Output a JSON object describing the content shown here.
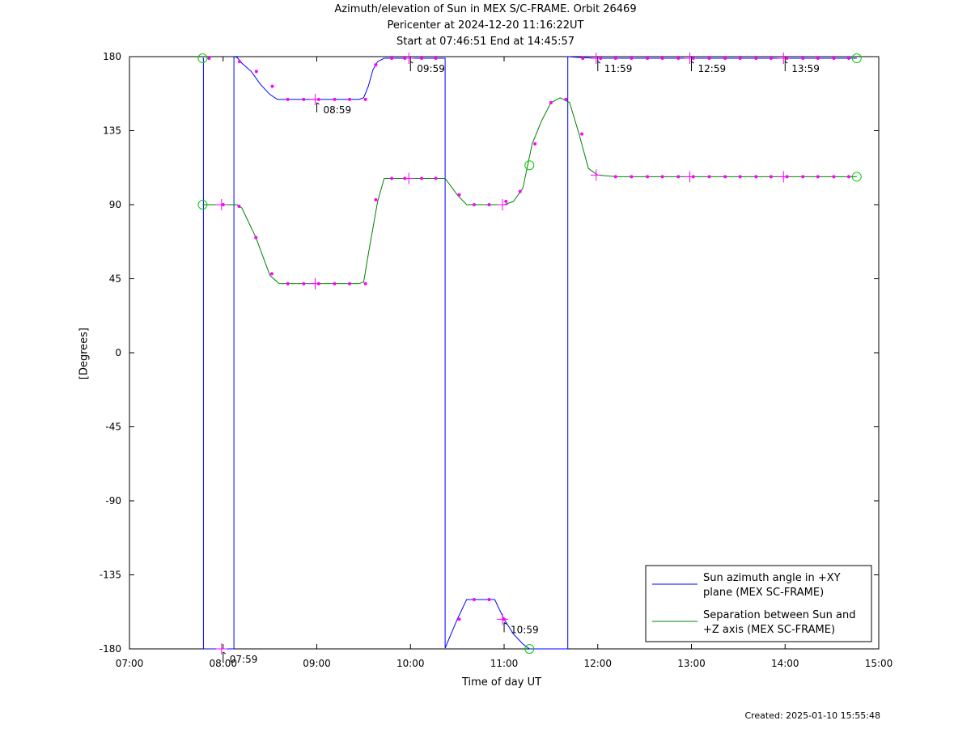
{
  "titles": {
    "line1": "Azimuth/elevation of Sun in MEX S/C-FRAME.  Orbit 26469",
    "line2": "Pericenter at 2024-12-20 11:16:22UT",
    "line3": "Start at 07:46:51 End at 14:45:57"
  },
  "created": "Created: 2025-01-10 15:55:48",
  "chart_data": {
    "type": "line",
    "xlabel": "Time of day UT",
    "ylabel": "[Degrees]",
    "xlim": [
      7.0,
      15.0
    ],
    "ylim": [
      -180,
      180
    ],
    "x_ticks": [
      {
        "v": 7,
        "label": "07:00"
      },
      {
        "v": 8,
        "label": "08:00"
      },
      {
        "v": 9,
        "label": "09:00"
      },
      {
        "v": 10,
        "label": "10:00"
      },
      {
        "v": 11,
        "label": "11:00"
      },
      {
        "v": 12,
        "label": "12:00"
      },
      {
        "v": 13,
        "label": "13:00"
      },
      {
        "v": 14,
        "label": "14:00"
      },
      {
        "v": 15,
        "label": "15:00"
      }
    ],
    "y_ticks": [
      {
        "v": 180,
        "label": "180"
      },
      {
        "v": 135,
        "label": "135"
      },
      {
        "v": 90,
        "label": "90"
      },
      {
        "v": 45,
        "label": "45"
      },
      {
        "v": 0,
        "label": "0"
      },
      {
        "v": -45,
        "label": "-45"
      },
      {
        "v": -90,
        "label": "-90"
      },
      {
        "v": -135,
        "label": "-135"
      },
      {
        "v": -180,
        "label": "-180"
      }
    ],
    "legend_position": "bottom-right",
    "series": [
      {
        "name": "Sun azimuth angle in +XY plane (MEX SC-FRAME)",
        "legend_lines": [
          "Sun azimuth angle in +XY",
          "plane (MEX SC-FRAME)"
        ],
        "color": "#0000ff",
        "x": [
          7.781,
          7.79,
          7.79,
          8.115,
          8.115,
          8.15,
          8.2,
          8.3,
          8.4,
          8.5,
          8.58,
          8.63,
          8.8,
          9.0,
          9.2,
          9.45,
          9.5,
          9.55,
          9.6,
          9.65,
          9.72,
          9.8,
          10.0,
          10.2,
          10.37,
          10.37,
          10.5,
          10.6,
          10.7,
          10.9,
          11.0,
          11.1,
          11.2,
          11.27,
          11.4,
          11.55,
          11.68,
          11.68,
          11.8,
          12.0,
          12.5,
          13.0,
          13.5,
          14.0,
          14.5,
          14.765
        ],
        "y": [
          179,
          179,
          -180,
          -180,
          180,
          179.5,
          176,
          171,
          163,
          157,
          154,
          154,
          154,
          154,
          154,
          154,
          155,
          162,
          172,
          177,
          179,
          179,
          179,
          179,
          179,
          -179.5,
          -162,
          -150,
          -150,
          -150,
          -162,
          -171,
          -177,
          -180,
          -180,
          -180,
          -180,
          180,
          179.5,
          179,
          179,
          179,
          179,
          179,
          179,
          179
        ]
      },
      {
        "name": "Separation between Sun and +Z axis (MEX SC-FRAME)",
        "legend_lines": [
          "Separation between Sun and",
          "+Z axis (MEX SC-FRAME)"
        ],
        "color": "#008000",
        "x": [
          7.781,
          8.15,
          8.2,
          8.35,
          8.5,
          8.6,
          8.8,
          9.0,
          9.2,
          9.45,
          9.5,
          9.55,
          9.65,
          9.72,
          9.8,
          10.0,
          10.2,
          10.37,
          10.5,
          10.6,
          10.8,
          11.0,
          11.1,
          11.2,
          11.3,
          11.4,
          11.5,
          11.6,
          11.7,
          11.8,
          11.9,
          12.0,
          12.2,
          12.5,
          13.0,
          13.5,
          14.0,
          14.5,
          14.765
        ],
        "y": [
          90,
          90,
          88,
          70,
          47,
          42,
          42,
          42,
          42,
          42,
          43,
          60,
          92,
          106,
          106,
          106,
          106,
          106,
          96,
          90,
          90,
          90,
          92,
          100,
          127,
          141,
          152,
          155,
          152,
          133,
          112,
          108,
          107,
          107,
          107,
          107,
          107,
          107,
          107
        ]
      }
    ],
    "markers": [
      {
        "x": 7.85,
        "y": 179
      },
      {
        "x": 8.175,
        "y": 177
      },
      {
        "x": 8.355,
        "y": 171
      },
      {
        "x": 8.525,
        "y": 162
      },
      {
        "x": 8.69,
        "y": 154
      },
      {
        "x": 8.86,
        "y": 154
      },
      {
        "x": 9.02,
        "y": 154
      },
      {
        "x": 9.19,
        "y": 154
      },
      {
        "x": 9.35,
        "y": 154
      },
      {
        "x": 9.52,
        "y": 154
      },
      {
        "x": 9.63,
        "y": 175
      },
      {
        "x": 9.8,
        "y": 179
      },
      {
        "x": 9.94,
        "y": 179
      },
      {
        "x": 10.12,
        "y": 179
      },
      {
        "x": 10.27,
        "y": 179
      },
      {
        "x": 10.52,
        "y": -162
      },
      {
        "x": 10.68,
        "y": -150
      },
      {
        "x": 10.84,
        "y": -150
      },
      {
        "x": 11.0,
        "y": -162
      },
      {
        "x": 11.84,
        "y": 179
      },
      {
        "x": 12.03,
        "y": 179
      },
      {
        "x": 12.19,
        "y": 179
      },
      {
        "x": 12.36,
        "y": 179
      },
      {
        "x": 12.53,
        "y": 179
      },
      {
        "x": 12.69,
        "y": 179
      },
      {
        "x": 12.86,
        "y": 179
      },
      {
        "x": 13.02,
        "y": 179
      },
      {
        "x": 13.19,
        "y": 179
      },
      {
        "x": 13.36,
        "y": 179
      },
      {
        "x": 13.52,
        "y": 179
      },
      {
        "x": 13.69,
        "y": 179
      },
      {
        "x": 13.85,
        "y": 179
      },
      {
        "x": 14.02,
        "y": 179
      },
      {
        "x": 14.19,
        "y": 179
      },
      {
        "x": 14.35,
        "y": 179
      },
      {
        "x": 14.52,
        "y": 179
      },
      {
        "x": 14.68,
        "y": 179
      },
      {
        "x": 8.0,
        "y": 90
      },
      {
        "x": 8.17,
        "y": 89
      },
      {
        "x": 8.35,
        "y": 70
      },
      {
        "x": 8.52,
        "y": 48
      },
      {
        "x": 8.69,
        "y": 42
      },
      {
        "x": 8.86,
        "y": 42
      },
      {
        "x": 9.02,
        "y": 42
      },
      {
        "x": 9.19,
        "y": 42
      },
      {
        "x": 9.35,
        "y": 42
      },
      {
        "x": 9.52,
        "y": 42
      },
      {
        "x": 9.63,
        "y": 93
      },
      {
        "x": 9.8,
        "y": 106
      },
      {
        "x": 9.94,
        "y": 106
      },
      {
        "x": 10.12,
        "y": 106
      },
      {
        "x": 10.27,
        "y": 106
      },
      {
        "x": 10.52,
        "y": 96
      },
      {
        "x": 10.68,
        "y": 90
      },
      {
        "x": 10.84,
        "y": 90
      },
      {
        "x": 11.02,
        "y": 92
      },
      {
        "x": 11.17,
        "y": 98
      },
      {
        "x": 11.33,
        "y": 127
      },
      {
        "x": 11.5,
        "y": 152
      },
      {
        "x": 11.66,
        "y": 154
      },
      {
        "x": 11.83,
        "y": 133
      },
      {
        "x": 12.19,
        "y": 107
      },
      {
        "x": 12.36,
        "y": 107
      },
      {
        "x": 12.53,
        "y": 107
      },
      {
        "x": 12.69,
        "y": 107
      },
      {
        "x": 12.86,
        "y": 107
      },
      {
        "x": 13.02,
        "y": 107
      },
      {
        "x": 13.19,
        "y": 107
      },
      {
        "x": 13.36,
        "y": 107
      },
      {
        "x": 13.52,
        "y": 107
      },
      {
        "x": 13.69,
        "y": 107
      },
      {
        "x": 13.85,
        "y": 107
      },
      {
        "x": 14.02,
        "y": 107
      },
      {
        "x": 14.19,
        "y": 107
      },
      {
        "x": 14.35,
        "y": 107
      },
      {
        "x": 14.52,
        "y": 107
      },
      {
        "x": 14.68,
        "y": 107
      }
    ],
    "hour_crosses": [
      {
        "x": 7.983,
        "y": -180
      },
      {
        "x": 7.983,
        "y": 90
      },
      {
        "x": 8.983,
        "y": 154
      },
      {
        "x": 8.983,
        "y": 42
      },
      {
        "x": 9.983,
        "y": 179
      },
      {
        "x": 9.983,
        "y": 106
      },
      {
        "x": 10.983,
        "y": -162
      },
      {
        "x": 10.983,
        "y": 90
      },
      {
        "x": 11.983,
        "y": 179
      },
      {
        "x": 11.983,
        "y": 108
      },
      {
        "x": 12.983,
        "y": 179
      },
      {
        "x": 12.983,
        "y": 107
      },
      {
        "x": 13.983,
        "y": 179
      },
      {
        "x": 13.983,
        "y": 107
      }
    ],
    "circles": [
      {
        "x": 7.781,
        "y": 179
      },
      {
        "x": 7.781,
        "y": 90
      },
      {
        "x": 14.765,
        "y": 179
      },
      {
        "x": 14.765,
        "y": 107
      },
      {
        "x": 11.27,
        "y": -180
      },
      {
        "x": 11.27,
        "y": 114
      }
    ],
    "annotations": [
      {
        "x": 7.983,
        "y": -180,
        "label": "07:59"
      },
      {
        "x": 8.983,
        "y": 154,
        "label": "08:59"
      },
      {
        "x": 9.983,
        "y": 179,
        "label": "09:59"
      },
      {
        "x": 10.983,
        "y": -162,
        "label": "10:59"
      },
      {
        "x": 11.983,
        "y": 179,
        "label": "11:59"
      },
      {
        "x": 12.983,
        "y": 179,
        "label": "12:59"
      },
      {
        "x": 13.983,
        "y": 179,
        "label": "13:59"
      }
    ]
  }
}
